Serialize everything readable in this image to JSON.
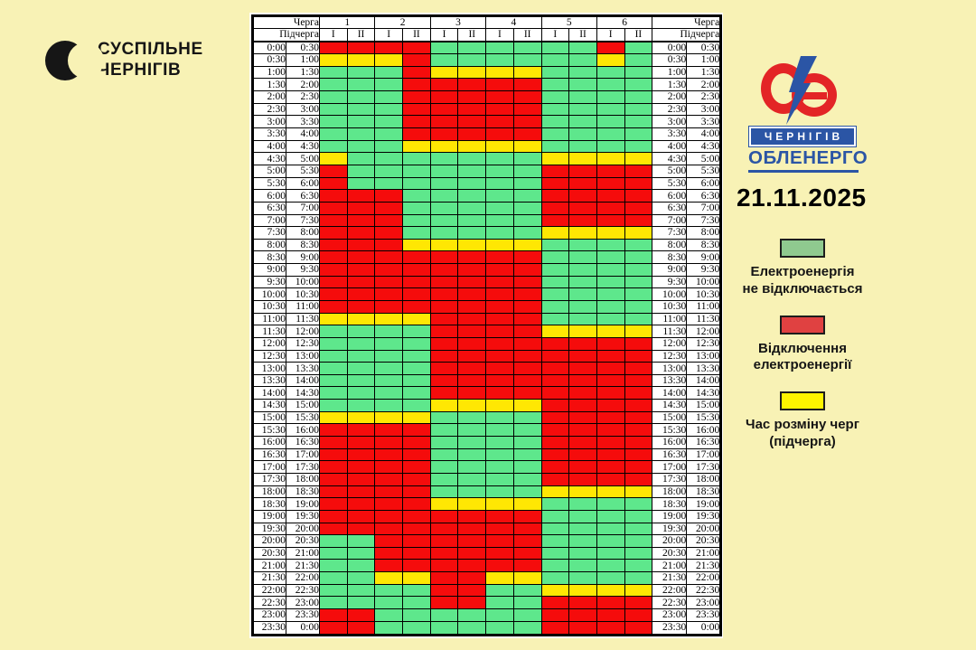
{
  "publisher": {
    "line1": "СУСПІЛЬНЕ",
    "line2": "ЧЕРНІГІВ"
  },
  "company": {
    "city": "ЧЕРНІГІВ",
    "name": "ОБЛЕНЕРГО"
  },
  "date": "21.11.2025",
  "icons": {
    "suspilne_mark": "black-crescent-circle",
    "oblenergo_mark": "red-oe-rings-with-blue-lightning"
  },
  "colors": {
    "background": "#F8F2B5",
    "grid_green": "#5EE78C",
    "grid_red": "#F50C0C",
    "grid_yellow": "#FFE703",
    "brand_blue": "#2B55A5",
    "brand_red": "#E32526"
  },
  "chart_data": {
    "type": "table",
    "columns": {
      "queue_label": "Черга",
      "subqueue_label": "Підчерга",
      "queues": [
        "1",
        "2",
        "3",
        "4",
        "5",
        "6"
      ],
      "subqueues": [
        "I",
        "II"
      ]
    },
    "states": {
      "G": {
        "color": "#5EE78C",
        "meaning": "Електроенергія не відключається"
      },
      "R": {
        "color": "#F50C0C",
        "meaning": "Відключення електроенергії"
      },
      "Y": {
        "color": "#FFE703",
        "meaning": "Час розміну черг (підчерга)"
      }
    },
    "rows": [
      {
        "start": "0:00",
        "end": "0:30",
        "cells": "RRRRGGGGGGRG"
      },
      {
        "start": "0:30",
        "end": "1:00",
        "cells": "YYYRGGGGGGYG"
      },
      {
        "start": "1:00",
        "end": "1:30",
        "cells": "GGGRYYYYGGGG"
      },
      {
        "start": "1:30",
        "end": "2:00",
        "cells": "GGGRRRRRGGGG"
      },
      {
        "start": "2:00",
        "end": "2:30",
        "cells": "GGGRRRRRGGGG"
      },
      {
        "start": "2:30",
        "end": "3:00",
        "cells": "GGGRRRRRGGGG"
      },
      {
        "start": "3:00",
        "end": "3:30",
        "cells": "GGGRRRRRGGGG"
      },
      {
        "start": "3:30",
        "end": "4:00",
        "cells": "GGGRRRRRGGGG"
      },
      {
        "start": "4:00",
        "end": "4:30",
        "cells": "GGGYYYYYGGGG"
      },
      {
        "start": "4:30",
        "end": "5:00",
        "cells": "YGGGGGGGYYYY"
      },
      {
        "start": "5:00",
        "end": "5:30",
        "cells": "RGGGGGGGRRRR"
      },
      {
        "start": "5:30",
        "end": "6:00",
        "cells": "RGGGGGGGRRRR"
      },
      {
        "start": "6:00",
        "end": "6:30",
        "cells": "RRRGGGGGRRRR"
      },
      {
        "start": "6:30",
        "end": "7:00",
        "cells": "RRRGGGGGRRRR"
      },
      {
        "start": "7:00",
        "end": "7:30",
        "cells": "RRRGGGGGRRRR"
      },
      {
        "start": "7:30",
        "end": "8:00",
        "cells": "RRRGGGGGYYYY"
      },
      {
        "start": "8:00",
        "end": "8:30",
        "cells": "RRRYYYYYGGGG"
      },
      {
        "start": "8:30",
        "end": "9:00",
        "cells": "RRRRRRRRGGGG"
      },
      {
        "start": "9:00",
        "end": "9:30",
        "cells": "RRRRRRRRGGGG"
      },
      {
        "start": "9:30",
        "end": "10:00",
        "cells": "RRRRRRRRGGGG"
      },
      {
        "start": "10:00",
        "end": "10:30",
        "cells": "RRRRRRRRGGGG"
      },
      {
        "start": "10:30",
        "end": "11:00",
        "cells": "RRRRRRRRGGGG"
      },
      {
        "start": "11:00",
        "end": "11:30",
        "cells": "YYYYRRRRGGGG"
      },
      {
        "start": "11:30",
        "end": "12:00",
        "cells": "GGGGRRRRYYYY"
      },
      {
        "start": "12:00",
        "end": "12:30",
        "cells": "GGGGRRRRRRRR"
      },
      {
        "start": "12:30",
        "end": "13:00",
        "cells": "GGGGRRRRRRRR"
      },
      {
        "start": "13:00",
        "end": "13:30",
        "cells": "GGGGRRRRRRRR"
      },
      {
        "start": "13:30",
        "end": "14:00",
        "cells": "GGGGRRRRRRRR"
      },
      {
        "start": "14:00",
        "end": "14:30",
        "cells": "GGGGRRRRRRRR"
      },
      {
        "start": "14:30",
        "end": "15:00",
        "cells": "GGGGYYYYRRRR"
      },
      {
        "start": "15:00",
        "end": "15:30",
        "cells": "YYYYGGGGRRRR"
      },
      {
        "start": "15:30",
        "end": "16:00",
        "cells": "RRRRGGGGRRRR"
      },
      {
        "start": "16:00",
        "end": "16:30",
        "cells": "RRRRGGGGRRRR"
      },
      {
        "start": "16:30",
        "end": "17:00",
        "cells": "RRRRGGGGRRRR"
      },
      {
        "start": "17:00",
        "end": "17:30",
        "cells": "RRRRGGGGRRRR"
      },
      {
        "start": "17:30",
        "end": "18:00",
        "cells": "RRRRGGGGRRRR"
      },
      {
        "start": "18:00",
        "end": "18:30",
        "cells": "RRRRGGGGYYYY"
      },
      {
        "start": "18:30",
        "end": "19:00",
        "cells": "RRRRYYYYGGGG"
      },
      {
        "start": "19:00",
        "end": "19:30",
        "cells": "RRRRRRRRGGGG"
      },
      {
        "start": "19:30",
        "end": "20:00",
        "cells": "RRRRRRRRGGGG"
      },
      {
        "start": "20:00",
        "end": "20:30",
        "cells": "GGRRRRRRGGGG"
      },
      {
        "start": "20:30",
        "end": "21:00",
        "cells": "GGRRRRRRGGGG"
      },
      {
        "start": "21:00",
        "end": "21:30",
        "cells": "GGRRRRRRGGGG"
      },
      {
        "start": "21:30",
        "end": "22:00",
        "cells": "GGYYRRYYGGGG"
      },
      {
        "start": "22:00",
        "end": "22:30",
        "cells": "GGGGRRGGYYYY"
      },
      {
        "start": "22:30",
        "end": "23:00",
        "cells": "GGGGRRGGRRRR"
      },
      {
        "start": "23:00",
        "end": "23:30",
        "cells": "RRGGGGGGRRRR"
      },
      {
        "start": "23:30",
        "end": "0:00",
        "cells": "RRGGGGGGRRRR"
      }
    ]
  },
  "legend": {
    "items": [
      {
        "state": "G",
        "swatch_color": "#8FC98F",
        "lines": [
          "Електроенергія",
          "не відключається"
        ]
      },
      {
        "state": "R",
        "swatch_color": "#E04141",
        "lines": [
          "Відключення",
          "електроенергії"
        ]
      },
      {
        "state": "Y",
        "swatch_color": "#FFF500",
        "lines": [
          "Час розміну черг",
          "(підчерга)"
        ]
      }
    ]
  }
}
